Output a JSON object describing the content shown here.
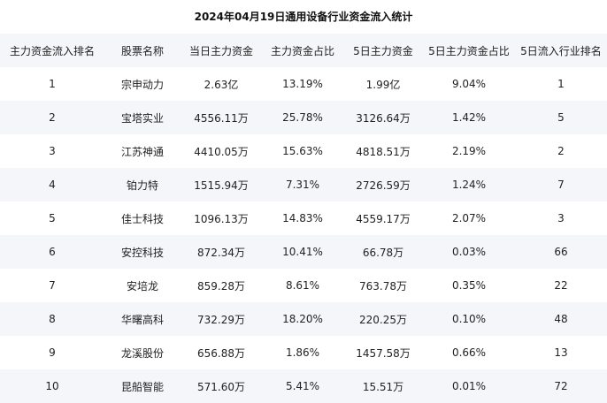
{
  "title": "2024年04月19日通用设备行业资金流入统计",
  "table": {
    "headers": [
      "主力资金流入排名",
      "股票名称",
      "当日主力资金",
      "主力资金占比",
      "5日主力资金",
      "5日主力资金占比",
      "5日流入行业排名"
    ],
    "rows": [
      [
        "1",
        "宗申动力",
        "2.63亿",
        "13.19%",
        "1.99亿",
        "9.04%",
        "1"
      ],
      [
        "2",
        "宝塔实业",
        "4556.11万",
        "25.78%",
        "3126.64万",
        "1.42%",
        "5"
      ],
      [
        "3",
        "江苏神通",
        "4410.05万",
        "15.63%",
        "4818.51万",
        "2.19%",
        "2"
      ],
      [
        "4",
        "铂力特",
        "1515.94万",
        "7.31%",
        "2726.59万",
        "1.24%",
        "7"
      ],
      [
        "5",
        "佳士科技",
        "1096.13万",
        "14.83%",
        "4559.17万",
        "2.07%",
        "3"
      ],
      [
        "6",
        "安控科技",
        "872.34万",
        "10.41%",
        "66.78万",
        "0.03%",
        "66"
      ],
      [
        "7",
        "安培龙",
        "859.28万",
        "8.61%",
        "763.78万",
        "0.35%",
        "22"
      ],
      [
        "8",
        "华曙高科",
        "732.29万",
        "18.20%",
        "220.25万",
        "0.10%",
        "48"
      ],
      [
        "9",
        "龙溪股份",
        "656.88万",
        "1.86%",
        "1457.58万",
        "0.66%",
        "13"
      ],
      [
        "10",
        "昆船智能",
        "571.60万",
        "5.41%",
        "15.51万",
        "0.01%",
        "72"
      ]
    ]
  }
}
